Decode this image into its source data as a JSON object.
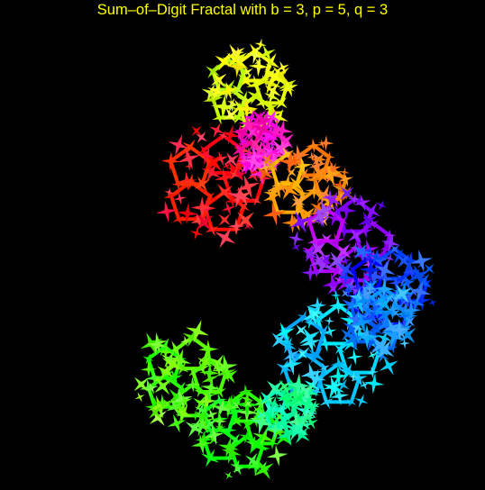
{
  "title": "Sum–of–Digit Fractal with b = 3, p = 5, q = 3",
  "colors": {
    "background": "#000000",
    "title": "#ffff00"
  },
  "fractal": {
    "base": 3,
    "p": 5,
    "q": 3,
    "coloring": "rainbow gradient (yellow, orange, red, magenta, violet, blue, cyan, green)"
  }
}
